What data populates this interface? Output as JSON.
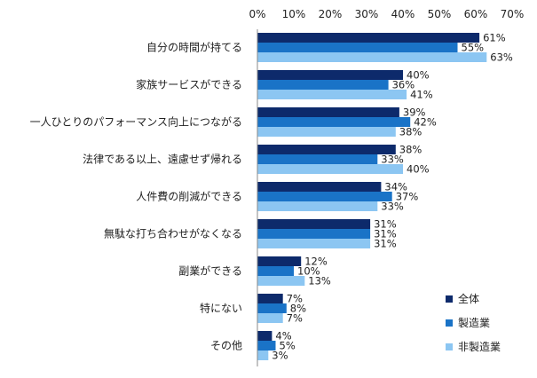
{
  "chart_data": {
    "type": "bar",
    "orientation": "horizontal",
    "categories": [
      "自分の時間が持てる",
      "家族サービスができる",
      "一人ひとりのパフォーマンス向上につながる",
      "法律である以上、遠慮せず帰れる",
      "人件費の削減ができる",
      "無駄な打ち合わせがなくなる",
      "副業ができる",
      "特にない",
      "その他"
    ],
    "series": [
      {
        "name": "全体",
        "color": "#0d2a6b",
        "values": [
          61,
          40,
          39,
          38,
          34,
          31,
          12,
          7,
          4
        ]
      },
      {
        "name": "製造業",
        "color": "#1a73c7",
        "values": [
          55,
          36,
          42,
          33,
          37,
          31,
          10,
          8,
          5
        ]
      },
      {
        "name": "非製造業",
        "color": "#8cc6f2",
        "values": [
          63,
          41,
          38,
          40,
          33,
          31,
          13,
          7,
          3
        ]
      }
    ],
    "xlim": [
      0,
      70
    ],
    "xticks": [
      "0%",
      "10%",
      "20%",
      "30%",
      "40%",
      "50%",
      "60%",
      "70%"
    ],
    "value_suffix": "%",
    "grid": false,
    "legend_position": "bottom-right"
  }
}
